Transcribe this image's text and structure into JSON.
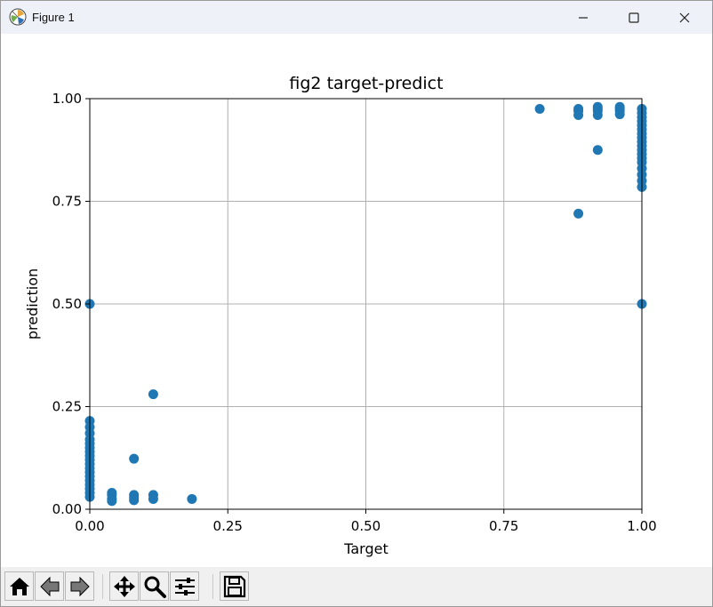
{
  "window": {
    "title": "Figure 1",
    "icons": {
      "app": "matplotlib-logo-icon",
      "minimize": "minimize-icon",
      "maximize": "maximize-icon",
      "close": "close-icon"
    }
  },
  "toolbar": {
    "buttons": [
      {
        "name": "home",
        "icon": "home-icon"
      },
      {
        "name": "back",
        "icon": "back-arrow-icon"
      },
      {
        "name": "forward",
        "icon": "forward-arrow-icon"
      },
      {
        "name": "pan",
        "icon": "move-icon"
      },
      {
        "name": "zoom",
        "icon": "magnifier-icon"
      },
      {
        "name": "configure-subplots",
        "icon": "sliders-icon"
      },
      {
        "name": "save",
        "icon": "floppy-disk-icon"
      }
    ]
  },
  "chart_data": {
    "type": "scatter",
    "title": "fig2 target-predict",
    "xlabel": "Target",
    "ylabel": "prediction",
    "xlim": [
      0,
      1
    ],
    "ylim": [
      0,
      1
    ],
    "xticks": [
      "0.00",
      "0.25",
      "0.50",
      "0.75",
      "1.00"
    ],
    "yticks": [
      "0.00",
      "0.25",
      "0.50",
      "0.75",
      "1.00"
    ],
    "grid": true,
    "marker_color": "#1f77b4",
    "series": [
      {
        "points": [
          [
            0.0,
            0.5
          ],
          [
            0.0,
            0.215
          ],
          [
            0.0,
            0.2
          ],
          [
            0.0,
            0.185
          ],
          [
            0.0,
            0.17
          ],
          [
            0.0,
            0.16
          ],
          [
            0.0,
            0.15
          ],
          [
            0.0,
            0.14
          ],
          [
            0.0,
            0.13
          ],
          [
            0.0,
            0.12
          ],
          [
            0.0,
            0.11
          ],
          [
            0.0,
            0.1
          ],
          [
            0.0,
            0.09
          ],
          [
            0.0,
            0.08
          ],
          [
            0.0,
            0.07
          ],
          [
            0.0,
            0.06
          ],
          [
            0.0,
            0.05
          ],
          [
            0.0,
            0.04
          ],
          [
            0.0,
            0.03
          ],
          [
            0.04,
            0.04
          ],
          [
            0.04,
            0.035
          ],
          [
            0.04,
            0.025
          ],
          [
            0.04,
            0.02
          ],
          [
            0.08,
            0.123
          ],
          [
            0.08,
            0.035
          ],
          [
            0.08,
            0.028
          ],
          [
            0.08,
            0.022
          ],
          [
            0.115,
            0.28
          ],
          [
            0.115,
            0.035
          ],
          [
            0.115,
            0.025
          ],
          [
            0.185,
            0.025
          ],
          [
            0.815,
            0.975
          ],
          [
            0.885,
            0.975
          ],
          [
            0.885,
            0.97
          ],
          [
            0.885,
            0.96
          ],
          [
            0.885,
            0.72
          ],
          [
            0.92,
            0.98
          ],
          [
            0.92,
            0.975
          ],
          [
            0.92,
            0.97
          ],
          [
            0.92,
            0.96
          ],
          [
            0.92,
            0.875
          ],
          [
            0.96,
            0.98
          ],
          [
            0.96,
            0.975
          ],
          [
            0.96,
            0.97
          ],
          [
            0.96,
            0.962
          ],
          [
            1.0,
            0.975
          ],
          [
            1.0,
            0.965
          ],
          [
            1.0,
            0.955
          ],
          [
            1.0,
            0.945
          ],
          [
            1.0,
            0.935
          ],
          [
            1.0,
            0.925
          ],
          [
            1.0,
            0.915
          ],
          [
            1.0,
            0.905
          ],
          [
            1.0,
            0.895
          ],
          [
            1.0,
            0.885
          ],
          [
            1.0,
            0.875
          ],
          [
            1.0,
            0.865
          ],
          [
            1.0,
            0.855
          ],
          [
            1.0,
            0.845
          ],
          [
            1.0,
            0.83
          ],
          [
            1.0,
            0.815
          ],
          [
            1.0,
            0.8
          ],
          [
            1.0,
            0.785
          ],
          [
            1.0,
            0.5
          ]
        ]
      }
    ]
  }
}
